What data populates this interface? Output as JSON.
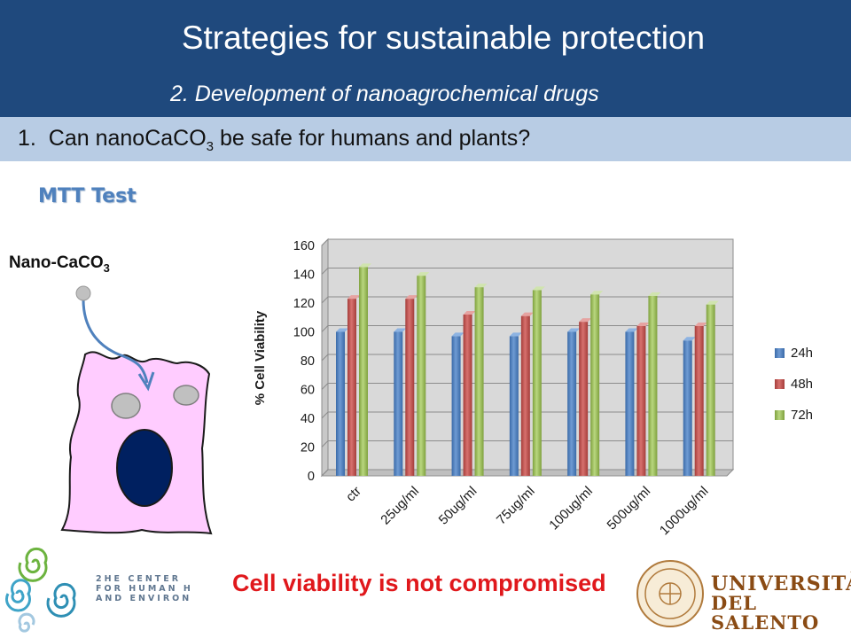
{
  "header": {
    "title": "Strategies for sustainable protection",
    "subtitle": "2. Development of nanoagrochemical drugs"
  },
  "question": {
    "number": "1.",
    "text_before": "Can nanoCaCO",
    "subscript": "3",
    "text_after": " be safe for humans and plants?"
  },
  "test_label": "MTT Test",
  "cell_diagram": {
    "particle_label": "Nano-CaCO",
    "particle_subscript": "3"
  },
  "conclusion": "Cell viability is not compromised",
  "logos": {
    "left_lines": [
      "2HE CENTER",
      "FOR HUMAN H",
      "AND ENVIRON"
    ],
    "university_line1": "UNIVERSITÀ",
    "university_line2": "DEL SALENTO"
  },
  "colors": {
    "header_bg": "#1f497d",
    "question_bg": "#b8cce4",
    "test_label": "#4f81bd",
    "conclusion": "#e0181c",
    "series_24h": "#4f81bd",
    "series_48h": "#c0504d",
    "series_72h": "#9bbb59"
  },
  "chart_data": {
    "type": "bar",
    "categories": [
      "ctr",
      "25ug/ml",
      "50ug/ml",
      "75ug/ml",
      "100ug/ml",
      "500ug/ml",
      "1000ug/ml"
    ],
    "series": [
      {
        "name": "24h",
        "values": [
          100,
          100,
          97,
          97,
          100,
          100,
          94
        ]
      },
      {
        "name": "48h",
        "values": [
          123,
          123,
          112,
          111,
          107,
          104,
          104
        ]
      },
      {
        "name": "72h",
        "values": [
          145,
          139,
          131,
          129,
          126,
          125,
          119
        ]
      }
    ],
    "ylabel": "% Cell Viability",
    "xlabel": "",
    "ylim": [
      0,
      160
    ],
    "yticks": [
      0,
      20,
      40,
      60,
      80,
      100,
      120,
      140,
      160
    ],
    "grid": true,
    "legend": "right"
  }
}
